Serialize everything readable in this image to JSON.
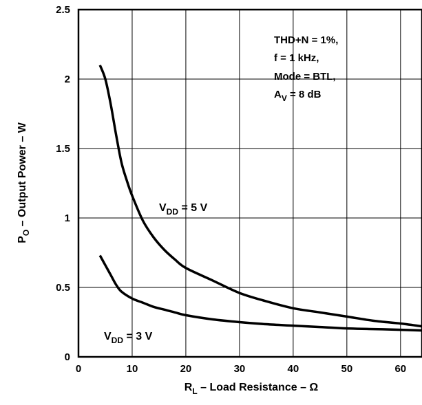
{
  "chart_data": {
    "type": "line",
    "title": "",
    "xlabel": {
      "main": "R",
      "sub": "L",
      "rest": " – Load Resistance – Ω"
    },
    "ylabel": {
      "main": "P",
      "sub": "O",
      "rest": " – Output Power – W"
    },
    "xlim": [
      0,
      64
    ],
    "ylim": [
      0,
      2.5
    ],
    "xticks": [
      0,
      10,
      20,
      30,
      40,
      50,
      60
    ],
    "yticks": [
      0,
      0.5,
      1,
      1.5,
      2,
      2.5
    ],
    "xtick_labels": [
      "0",
      "10",
      "20",
      "30",
      "40",
      "50",
      "60"
    ],
    "ytick_labels": [
      "0",
      "0.5",
      "1",
      "1.5",
      "2",
      "2.5"
    ],
    "grid": true,
    "annotation": {
      "line1": "THD+N = 1%,",
      "line2": "f = 1 kHz,",
      "line3": "Mode = BTL,",
      "line4_main": "A",
      "line4_sub": "V",
      "line4_rest": " = 8 dB"
    },
    "series": [
      {
        "label_main": "V",
        "label_sub": "DD",
        "label_rest": " = 5 V",
        "x": [
          4,
          5,
          6,
          7,
          8,
          9,
          10,
          12,
          14,
          16,
          18,
          20,
          25,
          30,
          35,
          40,
          45,
          50,
          55,
          60,
          64
        ],
        "y": [
          2.1,
          2.0,
          1.82,
          1.6,
          1.4,
          1.27,
          1.16,
          0.98,
          0.86,
          0.77,
          0.7,
          0.64,
          0.55,
          0.46,
          0.4,
          0.35,
          0.32,
          0.29,
          0.26,
          0.24,
          0.22
        ]
      },
      {
        "label_main": "V",
        "label_sub": "DD",
        "label_rest": " = 3 V",
        "x": [
          4,
          5,
          6,
          7,
          8,
          10,
          12,
          14,
          16,
          18,
          20,
          25,
          30,
          35,
          40,
          45,
          50,
          55,
          60,
          64
        ],
        "y": [
          0.73,
          0.66,
          0.59,
          0.52,
          0.47,
          0.42,
          0.39,
          0.36,
          0.34,
          0.32,
          0.3,
          0.27,
          0.25,
          0.235,
          0.225,
          0.215,
          0.205,
          0.2,
          0.195,
          0.19
        ]
      }
    ]
  }
}
